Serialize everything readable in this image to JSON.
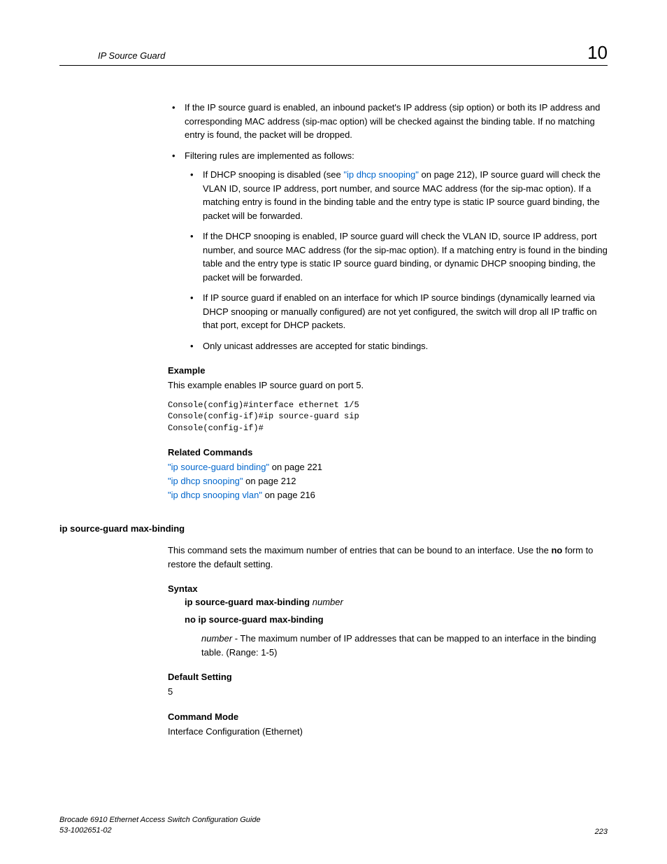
{
  "header": {
    "title": "IP Source Guard",
    "chapter": "10"
  },
  "bullets": {
    "b1": "If the IP source guard is enabled, an inbound packet's IP address (sip option) or both its IP address and corresponding MAC address (sip-mac option) will be checked against the binding table. If no matching entry is found, the packet will be dropped.",
    "b2": "Filtering rules are implemented as follows:",
    "b2_1_pre": "If DHCP snooping is disabled (see ",
    "b2_1_link": "\"ip dhcp snooping\"",
    "b2_1_post": " on page 212), IP source guard will check the VLAN ID, source IP address, port number, and source MAC address (for the sip-mac option). If a matching entry is found in the binding table and the entry type is static IP source guard binding, the packet will be forwarded.",
    "b2_2": "If the DHCP snooping is enabled, IP source guard will check the VLAN ID, source IP address, port number, and source MAC address (for the sip-mac option). If a matching entry is found in the binding table and the entry type is static IP source guard binding, or dynamic DHCP snooping binding, the packet will be forwarded.",
    "b2_3": "If IP source guard if enabled on an interface for which IP source bindings (dynamically learned via DHCP snooping or manually configured) are not yet configured, the switch will drop all IP traffic on that port, except for DHCP packets.",
    "b2_4": "Only unicast addresses are accepted for static bindings."
  },
  "example": {
    "heading": "Example",
    "text": "This example enables IP source guard on port 5.",
    "code": "Console(config)#interface ethernet 1/5\nConsole(config-if)#ip source-guard sip\nConsole(config-if)#"
  },
  "related": {
    "heading": "Related Commands",
    "r1_link": "\"ip source-guard binding\"",
    "r1_post": " on page 221",
    "r2_link": "\"ip dhcp snooping\"",
    "r2_post": " on page 212",
    "r3_link": "\"ip dhcp snooping vlan\"",
    "r3_post": " on page 216"
  },
  "command": {
    "name": "ip source-guard max-binding",
    "desc_pre": "This command sets the maximum number of entries that can be bound to an interface. Use the ",
    "desc_bold": "no",
    "desc_post": " form to restore the default setting.",
    "syntax_heading": "Syntax",
    "syntax_cmd": "ip source-guard max-binding",
    "syntax_arg": "number",
    "syntax_no": "no ip source-guard max-binding",
    "param_arg": "number",
    "param_desc": " - The maximum number of IP addresses that can be mapped to an interface in the binding table. (Range: 1-5)",
    "default_heading": "Default Setting",
    "default_value": "5",
    "mode_heading": "Command Mode",
    "mode_value": "Interface Configuration (Ethernet)"
  },
  "footer": {
    "title": "Brocade 6910 Ethernet Access Switch Configuration Guide",
    "docnum": "53-1002651-02",
    "page": "223"
  }
}
